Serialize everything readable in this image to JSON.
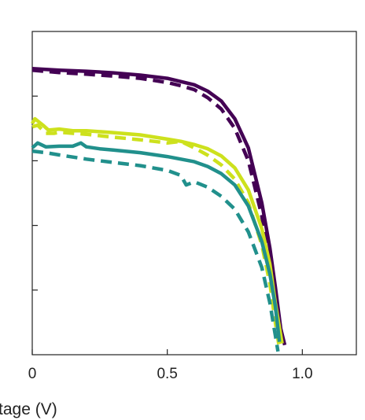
{
  "chart_data": {
    "type": "line",
    "title": "",
    "xlabel": "tage (V)",
    "ylabel": "",
    "xlim": [
      0,
      1.2
    ],
    "ylim": [
      0,
      1
    ],
    "x_ticks": [
      0,
      0.5,
      1.0
    ],
    "x_tick_labels": [
      "0",
      "0.5",
      "1.0"
    ],
    "y_ticks": [
      0.2,
      0.4,
      0.6,
      0.8
    ],
    "grid": false,
    "legend": "none",
    "series": [
      {
        "color": "#440154",
        "style": "solid",
        "x": [
          0,
          0.1,
          0.2,
          0.3,
          0.4,
          0.5,
          0.55,
          0.6,
          0.65,
          0.7,
          0.75,
          0.8,
          0.85,
          0.88,
          0.9,
          0.92,
          0.935
        ],
        "y": [
          0.885,
          0.88,
          0.877,
          0.872,
          0.865,
          0.855,
          0.845,
          0.835,
          0.815,
          0.785,
          0.73,
          0.64,
          0.47,
          0.33,
          0.21,
          0.08,
          0.03
        ]
      },
      {
        "color": "#440154",
        "style": "dashed",
        "x": [
          0,
          0.1,
          0.2,
          0.3,
          0.4,
          0.5,
          0.55,
          0.6,
          0.65,
          0.7,
          0.75,
          0.8,
          0.85,
          0.88,
          0.9,
          0.915
        ],
        "y": [
          0.88,
          0.873,
          0.868,
          0.862,
          0.855,
          0.842,
          0.832,
          0.82,
          0.795,
          0.76,
          0.7,
          0.6,
          0.43,
          0.28,
          0.15,
          0.04
        ]
      },
      {
        "color": "#cde11d",
        "style": "solid",
        "x": [
          0,
          0.01,
          0.04,
          0.06,
          0.1,
          0.15,
          0.2,
          0.3,
          0.4,
          0.5,
          0.55,
          0.6,
          0.65,
          0.7,
          0.75,
          0.8,
          0.85,
          0.88,
          0.9,
          0.925
        ],
        "y": [
          0.715,
          0.73,
          0.71,
          0.695,
          0.698,
          0.693,
          0.693,
          0.687,
          0.68,
          0.667,
          0.66,
          0.65,
          0.637,
          0.615,
          0.578,
          0.51,
          0.39,
          0.28,
          0.16,
          0.035
        ]
      },
      {
        "color": "#cde11d",
        "style": "dashed",
        "x": [
          0,
          0.02,
          0.05,
          0.08,
          0.1,
          0.2,
          0.3,
          0.4,
          0.45,
          0.5,
          0.55,
          0.58,
          0.6,
          0.65,
          0.7,
          0.75,
          0.8,
          0.85,
          0.88,
          0.9,
          0.915
        ],
        "y": [
          0.705,
          0.71,
          0.685,
          0.685,
          0.688,
          0.682,
          0.673,
          0.665,
          0.66,
          0.655,
          0.66,
          0.648,
          0.64,
          0.617,
          0.587,
          0.543,
          0.47,
          0.34,
          0.22,
          0.1,
          0.02
        ]
      },
      {
        "color": "#21908c",
        "style": "solid",
        "x": [
          0,
          0.02,
          0.05,
          0.1,
          0.15,
          0.18,
          0.2,
          0.25,
          0.3,
          0.4,
          0.5,
          0.55,
          0.6,
          0.65,
          0.7,
          0.75,
          0.8,
          0.85,
          0.88,
          0.9,
          0.915
        ],
        "y": [
          0.64,
          0.655,
          0.643,
          0.645,
          0.645,
          0.655,
          0.643,
          0.637,
          0.633,
          0.625,
          0.613,
          0.605,
          0.597,
          0.582,
          0.56,
          0.525,
          0.46,
          0.35,
          0.25,
          0.15,
          0.04
        ]
      },
      {
        "color": "#21908c",
        "style": "dashed",
        "x": [
          0,
          0.05,
          0.1,
          0.2,
          0.25,
          0.3,
          0.4,
          0.5,
          0.55,
          0.57,
          0.6,
          0.65,
          0.7,
          0.75,
          0.8,
          0.85,
          0.88,
          0.9,
          0.91
        ],
        "y": [
          0.63,
          0.625,
          0.618,
          0.605,
          0.6,
          0.595,
          0.585,
          0.57,
          0.555,
          0.525,
          0.535,
          0.518,
          0.49,
          0.45,
          0.38,
          0.27,
          0.16,
          0.06,
          0.01
        ]
      }
    ]
  }
}
